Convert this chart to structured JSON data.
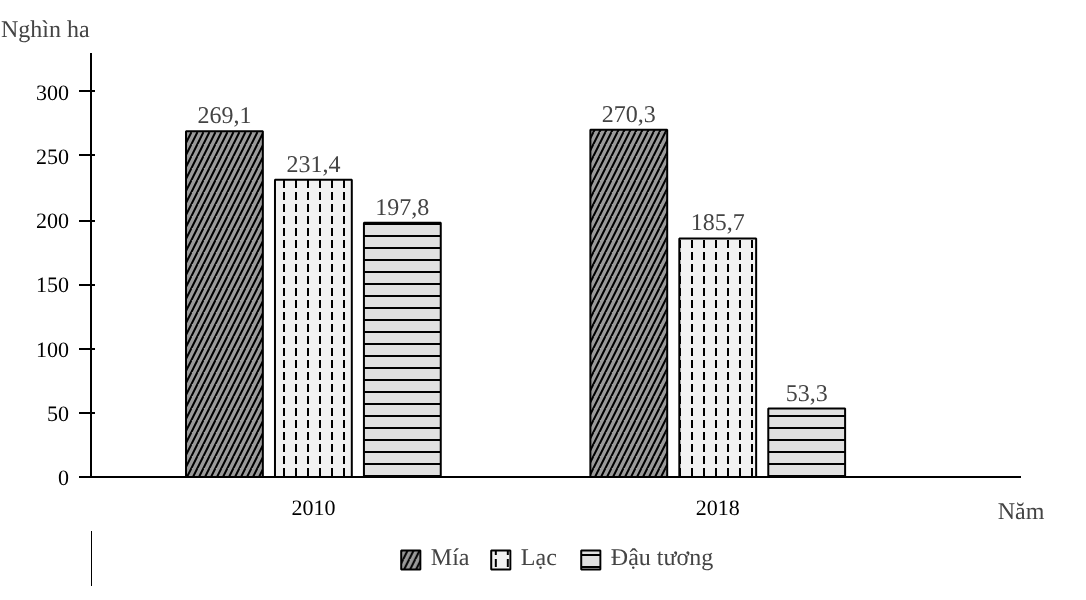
{
  "chart_data": {
    "type": "bar",
    "ylabel": "Nghìn ha",
    "xlabel": "Năm",
    "categories": [
      "2010",
      "2018"
    ],
    "series": [
      {
        "name": "Mía",
        "color": "#9a9a9a",
        "values": [
          269.1,
          270.3
        ],
        "value_labels": [
          "269,1",
          "270,3"
        ]
      },
      {
        "name": "Lạc",
        "color": "#f2f2f2",
        "values": [
          231.4,
          185.7
        ],
        "value_labels": [
          "231,4",
          "185,7"
        ]
      },
      {
        "name": "Đậu tương",
        "color": "#e0e0e0",
        "values": [
          197.8,
          53.3
        ],
        "value_labels": [
          "197,8",
          "53,3"
        ]
      }
    ],
    "ylim": [
      0,
      330
    ],
    "yticks": [
      0,
      50,
      100,
      150,
      200,
      250,
      300
    ],
    "grid": false,
    "legend": "bottom"
  }
}
